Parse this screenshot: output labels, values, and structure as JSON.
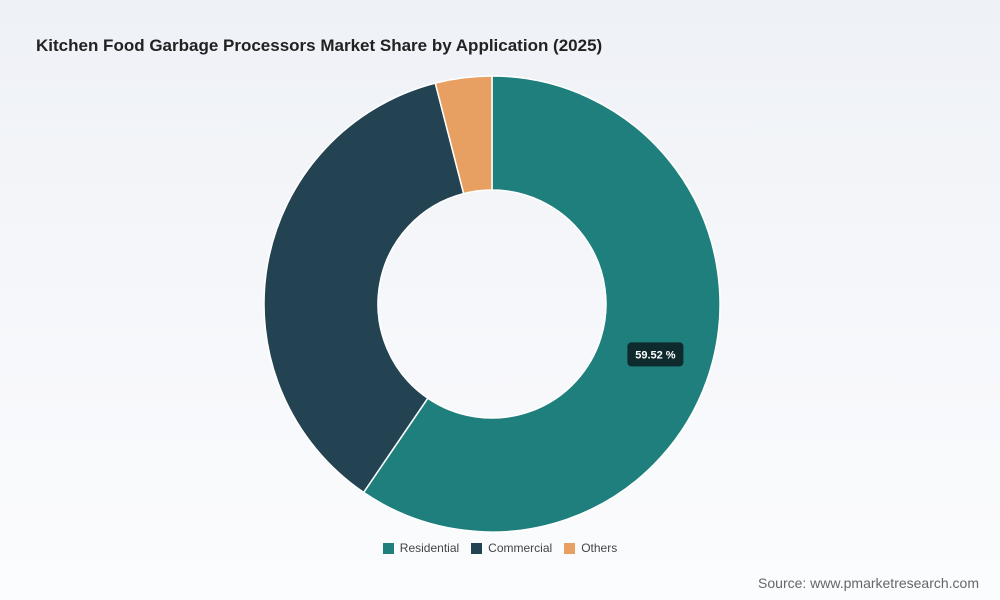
{
  "title": "Kitchen Food Garbage Processors Market Share by Application (2025)",
  "source": "Source: www.pmarketresearch.com",
  "chart_data": {
    "type": "pie",
    "title": "Kitchen Food Garbage Processors Market Share by Application (2025)",
    "donut": true,
    "categories": [
      "Residential",
      "Commercial",
      "Others"
    ],
    "values": [
      59.52,
      36.48,
      4.0
    ],
    "colors": [
      "#1e7f7c",
      "#234252",
      "#e8a062"
    ],
    "data_labels": [
      "59.52 %",
      "",
      ""
    ],
    "legend_position": "bottom"
  }
}
